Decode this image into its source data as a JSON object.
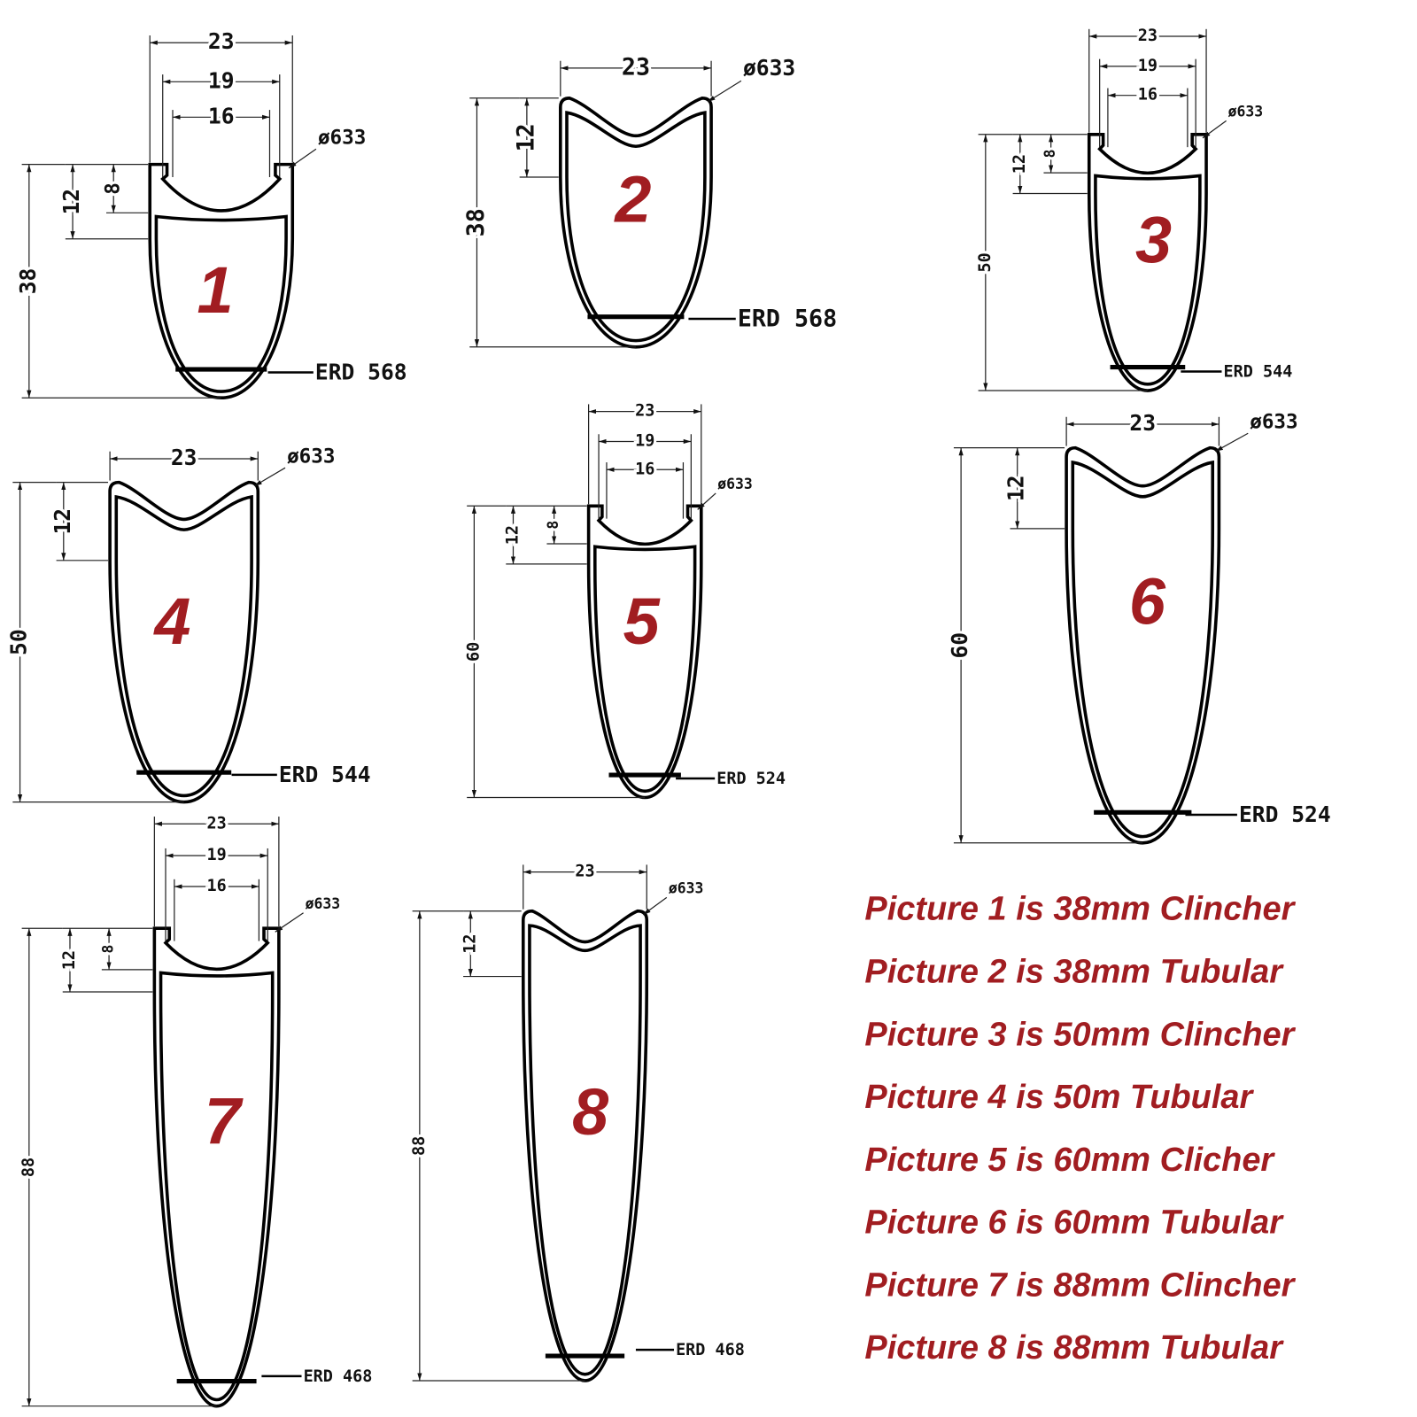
{
  "rims": [
    {
      "number": "1",
      "width": "23",
      "inner_width": "19",
      "bead_width": "16",
      "diameter": "ø633",
      "hook_height": "12",
      "bead_height": "8",
      "depth": "38",
      "erd": "ERD 568"
    },
    {
      "number": "2",
      "width": "23",
      "diameter": "ø633",
      "hook_height": "12",
      "depth": "38",
      "erd": "ERD 568"
    },
    {
      "number": "3",
      "width": "23",
      "inner_width": "19",
      "bead_width": "16",
      "diameter": "ø633",
      "hook_height": "12",
      "bead_height": "8",
      "depth": "50",
      "erd": "ERD 544"
    },
    {
      "number": "4",
      "width": "23",
      "diameter": "ø633",
      "hook_height": "12",
      "depth": "50",
      "erd": "ERD 544"
    },
    {
      "number": "5",
      "width": "23",
      "inner_width": "19",
      "bead_width": "16",
      "diameter": "ø633",
      "hook_height": "12",
      "bead_height": "8",
      "depth": "60",
      "erd": "ERD 524"
    },
    {
      "number": "6",
      "width": "23",
      "diameter": "ø633",
      "hook_height": "12",
      "depth": "60",
      "erd": "ERD 524"
    },
    {
      "number": "7",
      "width": "23",
      "inner_width": "19",
      "bead_width": "16",
      "diameter": "ø633",
      "hook_height": "12",
      "bead_height": "8",
      "depth": "88",
      "erd": "ERD 468"
    },
    {
      "number": "8",
      "width": "23",
      "diameter": "ø633",
      "hook_height": "12",
      "depth": "88",
      "erd": "ERD 468"
    }
  ],
  "captions": [
    "Picture 1 is 38mm Clincher",
    "Picture 2 is 38mm Tubular",
    "Picture 3 is 50mm Clincher",
    "Picture 4 is 50m Tubular",
    "Picture 5 is 60mm Clicher",
    "Picture 6 is 60mm Tubular",
    "Picture 7 is 88mm Clincher",
    "Picture 8 is 88mm Tubular"
  ]
}
